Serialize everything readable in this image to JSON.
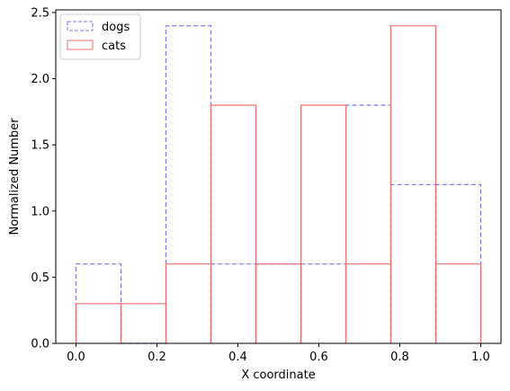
{
  "chart_data": {
    "type": "histogram",
    "xlabel": "X coordinate",
    "ylabel": "Normalized Number",
    "xlim": [
      -0.05,
      1.05
    ],
    "ylim": [
      0,
      2.52
    ],
    "xticks": [
      "0.0",
      "0.2",
      "0.4",
      "0.6",
      "0.8",
      "1.0"
    ],
    "yticks": [
      "0.0",
      "0.5",
      "1.0",
      "1.5",
      "2.0",
      "2.5"
    ],
    "grid": false,
    "legend_position": "top-left",
    "series": [
      {
        "name": "dogs",
        "color": "#7777ee",
        "linestyle": "dashed",
        "bin_edges": [
          0.0,
          0.1111,
          0.2222,
          0.3333,
          0.4444,
          0.5556,
          0.6667,
          0.7778,
          0.8889,
          1.0
        ],
        "values": [
          0.6,
          0.0,
          2.4,
          0.6,
          0.6,
          0.6,
          1.8,
          1.2,
          1.2
        ]
      },
      {
        "name": "cats",
        "color": "#f07070",
        "linestyle": "solid",
        "bin_edges": [
          0.0,
          0.1111,
          0.2222,
          0.3333,
          0.4444,
          0.5556,
          0.6667,
          0.7778,
          0.8889,
          1.0
        ],
        "values": [
          0.3,
          0.3,
          0.6,
          1.8,
          0.6,
          1.8,
          0.6,
          2.4,
          0.6
        ]
      }
    ]
  }
}
